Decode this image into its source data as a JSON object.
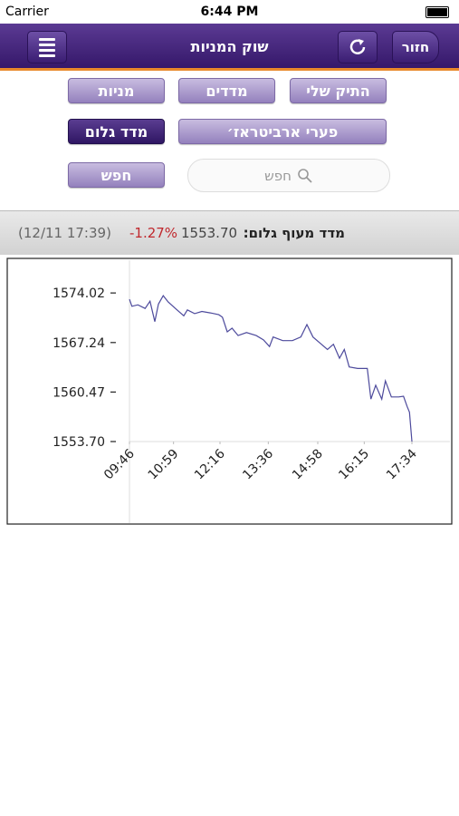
{
  "status_bar": {
    "carrier": "Carrier",
    "time": "6:44 PM"
  },
  "nav": {
    "title": "שוק המניות",
    "back": "חזור"
  },
  "buttons": {
    "my_portfolio": "התיק שלי",
    "indices": "מדדים",
    "stocks": "מניות",
    "arbitrage": "פערי ארביטראז׳",
    "implied_index": "מדד גלום",
    "search": "חפש"
  },
  "search_placeholder": "חפש",
  "index_info": {
    "name": "מדד מעוף גלום:",
    "value": "1553.70",
    "change": "-1.27%",
    "time": "(12/11 17:39)"
  },
  "chart_data": {
    "type": "line",
    "color": "#4d4a9c",
    "x": [
      586,
      590,
      600,
      612,
      620,
      628,
      634,
      642,
      650,
      662,
      676,
      682,
      694,
      706,
      720,
      734,
      740,
      748,
      756,
      766,
      780,
      796,
      808,
      818,
      824,
      840,
      856,
      870,
      880,
      890,
      904,
      914,
      924,
      934,
      942,
      950,
      964,
      980,
      986,
      994,
      1004,
      1010,
      1020,
      1032,
      1040,
      1046,
      1050,
      1054
    ],
    "values": [
      1573.15,
      1572.2,
      1572.4,
      1571.9,
      1572.9,
      1570.1,
      1572.5,
      1573.65,
      1572.8,
      1571.9,
      1570.9,
      1571.7,
      1571.2,
      1571.5,
      1571.3,
      1571.05,
      1570.7,
      1568.7,
      1569.2,
      1568.2,
      1568.6,
      1568.2,
      1567.6,
      1566.7,
      1568.0,
      1567.5,
      1567.5,
      1568.0,
      1569.7,
      1568.0,
      1567.0,
      1566.3,
      1567.0,
      1565.1,
      1566.3,
      1563.9,
      1563.7,
      1563.7,
      1559.5,
      1561.4,
      1559.5,
      1562.0,
      1559.8,
      1559.8,
      1559.9,
      1558.5,
      1557.7,
      1553.7
    ],
    "xlim": [
      586,
      1054
    ],
    "xticks": [
      {
        "value": 586,
        "label": "09:46"
      },
      {
        "value": 659,
        "label": "10:59"
      },
      {
        "value": 736,
        "label": "12:16"
      },
      {
        "value": 816,
        "label": "13:36"
      },
      {
        "value": 898,
        "label": "14:58"
      },
      {
        "value": 975,
        "label": "16:15"
      },
      {
        "value": 1054,
        "label": "17:34"
      }
    ],
    "ylim": [
      1553.7,
      1578.5
    ],
    "yticks": [
      {
        "value": 1553.7,
        "label": "1553.70"
      },
      1560.47,
      1567.24,
      1574.02
    ]
  }
}
